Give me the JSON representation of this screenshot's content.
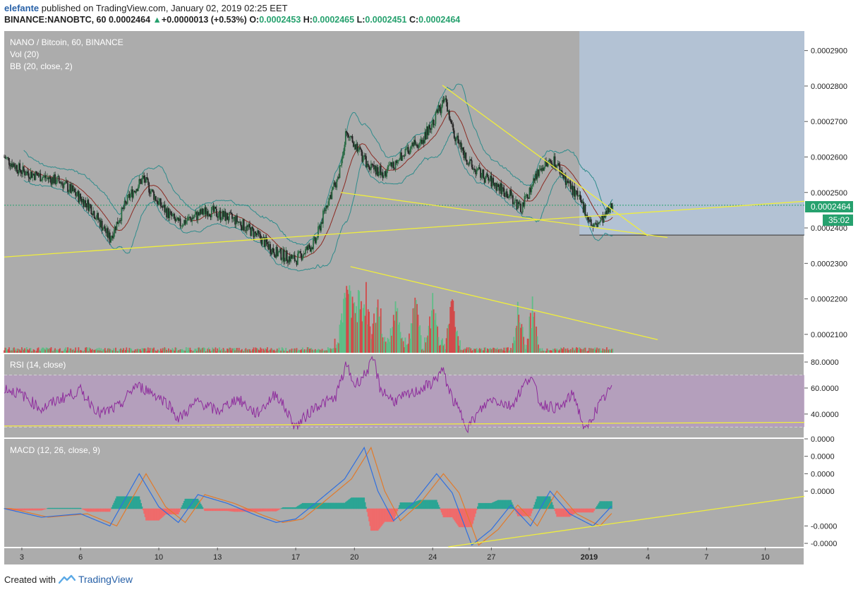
{
  "header": {
    "user": "elefante",
    "published_text": " published on TradingView.com, January 02, 2019 02:25 EET",
    "symbol": "BINANCE:NANOBTC, 60",
    "last": "0.0002464",
    "arrow": "▲",
    "change": "+0.0000013 (+0.53%)",
    "o_label": "O:",
    "o_value": "0.0002453",
    "h_label": "H:",
    "h_value": "0.0002465",
    "l_label": "L:",
    "l_value": "0.0002451",
    "c_label": "C:",
    "c_value": "0.0002464"
  },
  "panes": {
    "main_title": "NANO / Bitcoin, 60, BINANCE",
    "vol_label": "Vol (20)",
    "bb_label": "BB (20, close, 2)",
    "rsi_label": "RSI (14, close)",
    "macd_label": "MACD (12, 26, close, 9)"
  },
  "price_badge": {
    "value": "0.0002464",
    "countdown": "35:02"
  },
  "footer": {
    "created_with": "Created with",
    "brand": "TradingView"
  },
  "colors": {
    "pane_bg": "#acacac",
    "forecast_box": "#b3c2d4",
    "trendline": "#f0ee3c",
    "bb_band": "#2f8c8c",
    "bb_basis": "#8b2a22",
    "candle_up": "#2a6a42",
    "candle_down": "#222222",
    "vol_up": "#5fbd87",
    "vol_down": "#d24a4a",
    "rsi_line": "#8e2c9c",
    "rsi_band": "#b79cc1",
    "macd_line": "#2f6fe0",
    "signal_line": "#e27a2a",
    "hist_up": "#2aa594",
    "hist_down": "#ef6b6b",
    "badge_green": "#26a16e"
  },
  "chart_data": [
    {
      "type": "candlestick",
      "title": "NANO / Bitcoin, 60, BINANCE",
      "y_ticks": [
        "0.0002900",
        "0.0002800",
        "0.0002700",
        "0.0002600",
        "0.0002500",
        "0.0002400",
        "0.0002300",
        "0.0002200",
        "0.0002100"
      ],
      "y_tick_values": [
        0.00029,
        0.00028,
        0.00027,
        0.00026,
        0.00025,
        0.00024,
        0.00023,
        0.00022,
        0.00021
      ],
      "ylim": [
        0.0002048,
        0.0002955
      ],
      "x_ticks": [
        "3",
        "6",
        "10",
        "13",
        "17",
        "20",
        "24",
        "27",
        "2019",
        "4",
        "7",
        "10"
      ],
      "x_tick_values": [
        0,
        3,
        7,
        10,
        14,
        17,
        21,
        24,
        29,
        32,
        35,
        38
      ],
      "x_unit": "days from Dec 3 (2018)",
      "xlim": [
        -0.9,
        40.0
      ],
      "last_price": 0.0002464,
      "approx_close_path": [
        [
          -0.9,
          0.00026
        ],
        [
          0,
          0.000256
        ],
        [
          2,
          0.000253
        ],
        [
          3.5,
          0.000246
        ],
        [
          4.5,
          0.000237
        ],
        [
          5.5,
          0.000249
        ],
        [
          6.2,
          0.000254
        ],
        [
          7,
          0.000247
        ],
        [
          8,
          0.000241
        ],
        [
          9.5,
          0.000245
        ],
        [
          11,
          0.000242
        ],
        [
          12,
          0.000238
        ],
        [
          13,
          0.000233
        ],
        [
          14,
          0.000231
        ],
        [
          15,
          0.000236
        ],
        [
          15.6,
          0.000247
        ],
        [
          16.2,
          0.000255
        ],
        [
          16.6,
          0.000268
        ],
        [
          17.5,
          0.000259
        ],
        [
          18.5,
          0.000255
        ],
        [
          19.5,
          0.000261
        ],
        [
          20.5,
          0.000265
        ],
        [
          21,
          0.00027
        ],
        [
          21.6,
          0.000276
        ],
        [
          22.1,
          0.000266
        ],
        [
          23,
          0.000257
        ],
        [
          24,
          0.000253
        ],
        [
          25,
          0.000249
        ],
        [
          25.5,
          0.000245
        ],
        [
          26.5,
          0.000257
        ],
        [
          27.2,
          0.000259
        ],
        [
          28,
          0.000252
        ],
        [
          28.7,
          0.000246
        ],
        [
          29.2,
          0.00024
        ],
        [
          29.8,
          0.000243
        ],
        [
          30.2,
          0.0002464
        ]
      ],
      "bollinger": {
        "period": 20,
        "stdev": 2
      },
      "annotations": {
        "lines": [
          {
            "from": [
              -0.9,
              0.0002318
            ],
            "to": [
              40.0,
              0.0002475
            ]
          },
          {
            "from": [
              16.3,
              0.00025
            ],
            "to": [
              33.0,
              0.0002373
            ]
          },
          {
            "from": [
              21.5,
              0.0002802
            ],
            "to": [
              32.0,
              0.0002378
            ]
          },
          {
            "from": [
              16.8,
              0.0002291
            ],
            "to": [
              32.5,
              0.0002085
            ]
          }
        ],
        "forecast_box": {
          "x": [
            28.5,
            40.0
          ],
          "y": [
            0.000238,
            0.0002955
          ]
        },
        "hline": {
          "x": [
            28.5,
            40.0
          ],
          "y": 0.000238
        },
        "dotted_price_line": 0.0002464
      }
    },
    {
      "type": "bar",
      "title": "Vol (20)",
      "note": "volume overlay at bottom of main pane; spikes near Dec 17–21",
      "approx_spikes_x": [
        16.5,
        16.8,
        17.2,
        17.6,
        18.2,
        19.1,
        20.1,
        21.0,
        22.0,
        25.4,
        26.1
      ]
    },
    {
      "type": "line",
      "title": "RSI (14, close)",
      "y_ticks": [
        "80.0000",
        "60.0000",
        "40.0000"
      ],
      "y_tick_values": [
        80,
        60,
        40
      ],
      "ylim": [
        22,
        86
      ],
      "band": [
        30,
        70
      ],
      "approx_path": [
        [
          -0.9,
          60
        ],
        [
          0,
          55
        ],
        [
          1,
          44
        ],
        [
          2,
          52
        ],
        [
          3,
          58
        ],
        [
          4,
          40
        ],
        [
          5,
          46
        ],
        [
          5.8,
          62
        ],
        [
          6.5,
          58
        ],
        [
          7.5,
          48
        ],
        [
          8,
          36
        ],
        [
          9,
          50
        ],
        [
          10,
          42
        ],
        [
          11,
          52
        ],
        [
          12,
          40
        ],
        [
          13,
          56
        ],
        [
          14,
          30
        ],
        [
          15,
          46
        ],
        [
          16,
          52
        ],
        [
          16.6,
          78
        ],
        [
          17,
          62
        ],
        [
          17.5,
          70
        ],
        [
          18,
          82
        ],
        [
          18.3,
          60
        ],
        [
          19,
          50
        ],
        [
          20,
          56
        ],
        [
          21,
          64
        ],
        [
          21.5,
          74
        ],
        [
          22,
          52
        ],
        [
          22.8,
          30
        ],
        [
          23.5,
          44
        ],
        [
          24,
          52
        ],
        [
          25,
          46
        ],
        [
          26,
          70
        ],
        [
          26.5,
          48
        ],
        [
          27.5,
          44
        ],
        [
          28.2,
          56
        ],
        [
          28.8,
          26
        ],
        [
          29.3,
          42
        ],
        [
          30.2,
          62
        ]
      ],
      "annotations": {
        "line": {
          "from": [
            -0.9,
            30.8
          ],
          "to": [
            40.0,
            33.6
          ]
        }
      }
    },
    {
      "type": "line",
      "title": "MACD (12, 26, close, 9)",
      "y_ticks": [
        "0.0000",
        "0.0000",
        "0.0000",
        "0.0000",
        "-0.0000",
        "-0.0000"
      ],
      "y_tick_values": [
        4e-06,
        3e-06,
        2e-06,
        1e-06,
        -1e-06,
        -2e-06
      ],
      "ylim": [
        -2.2e-06,
        4e-06
      ],
      "series_macd_approx": [
        [
          -0.9,
          0.0
        ],
        [
          1,
          -5e-07
        ],
        [
          3,
          -3e-07
        ],
        [
          4.5,
          -1e-06
        ],
        [
          6,
          2e-06
        ],
        [
          7,
          1e-07
        ],
        [
          8,
          -8e-07
        ],
        [
          9,
          8e-07
        ],
        [
          10.5,
          3e-07
        ],
        [
          12,
          -4e-07
        ],
        [
          13,
          -8e-07
        ],
        [
          14,
          -6e-07
        ],
        [
          15,
          3e-07
        ],
        [
          16.5,
          1.7e-06
        ],
        [
          17.5,
          3.5e-06
        ],
        [
          18.2,
          1e-06
        ],
        [
          19,
          -7e-07
        ],
        [
          20,
          3e-07
        ],
        [
          21.2,
          2e-06
        ],
        [
          22,
          9e-07
        ],
        [
          23,
          -2.1e-06
        ],
        [
          24,
          -1.2e-06
        ],
        [
          25,
          2e-07
        ],
        [
          26,
          -1e-06
        ],
        [
          27,
          1e-06
        ],
        [
          28,
          -3e-07
        ],
        [
          29.2,
          -1e-06
        ],
        [
          30.2,
          2e-07
        ]
      ],
      "annotations": {
        "line": {
          "from": [
            21.8,
            -2.2e-06
          ],
          "to": [
            40.0,
            7e-07
          ]
        }
      }
    }
  ]
}
